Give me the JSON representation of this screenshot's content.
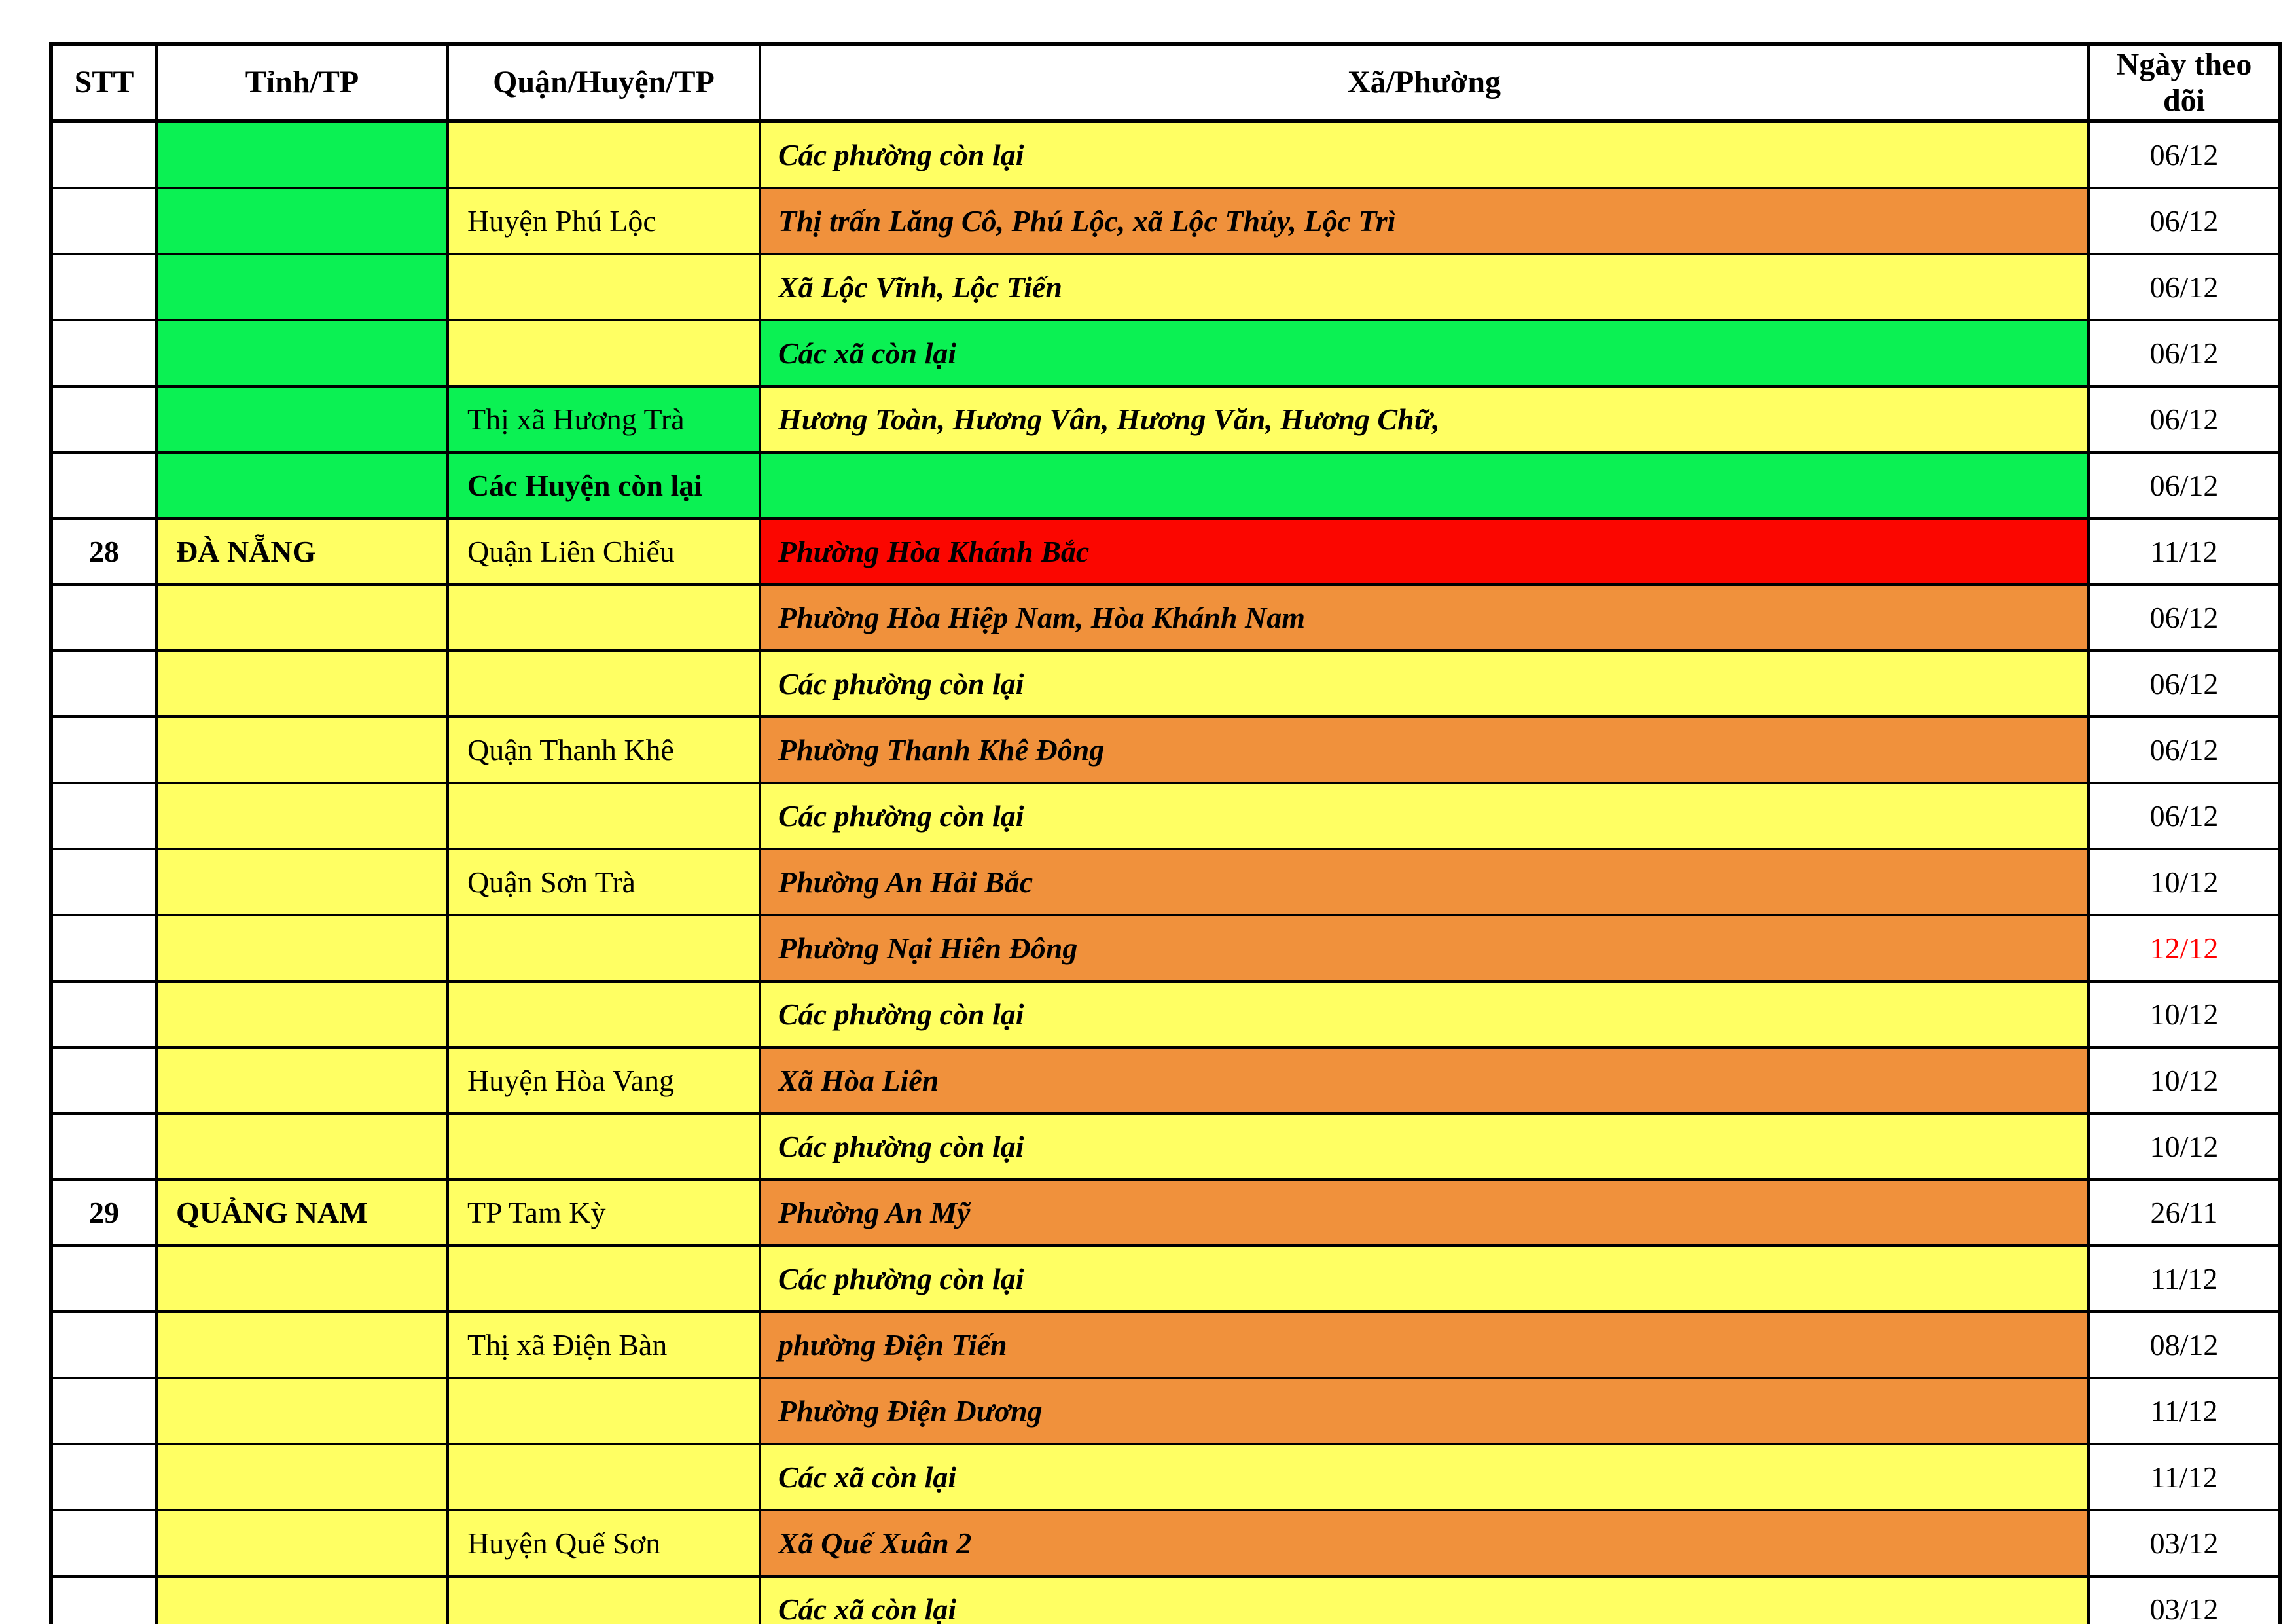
{
  "colors": {
    "green": "#0BF153",
    "yellow": "#FFFF63",
    "orange": "#F0913C",
    "red": "#FB0600",
    "white": "#FFFFFF",
    "date_red_text": "#FF0000"
  },
  "table": {
    "headers": [
      "STT",
      "Tỉnh/TP",
      "Quận/Huyện/TP",
      "Xã/Phường",
      "Ngày theo dõi"
    ],
    "rows": [
      {
        "stt": "",
        "province": "",
        "p_bg": "green",
        "district": "",
        "d_bg": "yellow",
        "d_bold": false,
        "ward": "Các phường còn lại",
        "w_bg": "yellow",
        "date": "06/12",
        "date_red": false
      },
      {
        "stt": "",
        "province": "",
        "p_bg": "green",
        "district": "Huyện Phú Lộc",
        "d_bg": "yellow",
        "d_bold": false,
        "ward": "Thị trấn Lăng Cô, Phú Lộc, xã Lộc Thủy, Lộc Trì",
        "w_bg": "orange",
        "date": "06/12",
        "date_red": false
      },
      {
        "stt": "",
        "province": "",
        "p_bg": "green",
        "district": "",
        "d_bg": "yellow",
        "d_bold": false,
        "ward": "Xã Lộc Vĩnh, Lộc Tiến",
        "w_bg": "yellow",
        "date": "06/12",
        "date_red": false
      },
      {
        "stt": "",
        "province": "",
        "p_bg": "green",
        "district": "",
        "d_bg": "yellow",
        "d_bold": false,
        "ward": "Các xã còn lại",
        "w_bg": "green",
        "date": "06/12",
        "date_red": false
      },
      {
        "stt": "",
        "province": "",
        "p_bg": "green",
        "district": "Thị xã Hương Trà",
        "d_bg": "green",
        "d_bold": false,
        "ward": "Hương Toàn, Hương Vân, Hương Văn, Hương Chữ,",
        "w_bg": "yellow",
        "date": "06/12",
        "date_red": false
      },
      {
        "stt": "",
        "province": "",
        "p_bg": "green",
        "district": "Các Huyện còn lại",
        "d_bg": "green",
        "d_bold": true,
        "ward": "",
        "w_bg": "green",
        "date": "06/12",
        "date_red": false
      },
      {
        "stt": "28",
        "province": "ĐÀ NẴNG",
        "p_bg": "yellow",
        "district": "Quận Liên Chiểu",
        "d_bg": "yellow",
        "d_bold": false,
        "ward": "Phường Hòa Khánh Bắc",
        "w_bg": "red",
        "date": "11/12",
        "date_red": false
      },
      {
        "stt": "",
        "province": "",
        "p_bg": "yellow",
        "district": "",
        "d_bg": "yellow",
        "d_bold": false,
        "ward": "Phường Hòa Hiệp Nam, Hòa Khánh Nam",
        "w_bg": "orange",
        "date": "06/12",
        "date_red": false
      },
      {
        "stt": "",
        "province": "",
        "p_bg": "yellow",
        "district": "",
        "d_bg": "yellow",
        "d_bold": false,
        "ward": "Các phường còn lại",
        "w_bg": "yellow",
        "date": "06/12",
        "date_red": false
      },
      {
        "stt": "",
        "province": "",
        "p_bg": "yellow",
        "district": "Quận Thanh Khê",
        "d_bg": "yellow",
        "d_bold": false,
        "ward": "Phường Thanh Khê Đông",
        "w_bg": "orange",
        "date": "06/12",
        "date_red": false
      },
      {
        "stt": "",
        "province": "",
        "p_bg": "yellow",
        "district": "",
        "d_bg": "yellow",
        "d_bold": false,
        "ward": "Các phường còn lại",
        "w_bg": "yellow",
        "date": "06/12",
        "date_red": false
      },
      {
        "stt": "",
        "province": "",
        "p_bg": "yellow",
        "district": "Quận Sơn Trà",
        "d_bg": "yellow",
        "d_bold": false,
        "ward": "Phường An Hải Bắc",
        "w_bg": "orange",
        "date": "10/12",
        "date_red": false
      },
      {
        "stt": "",
        "province": "",
        "p_bg": "yellow",
        "district": "",
        "d_bg": "yellow",
        "d_bold": false,
        "ward": "Phường Nại Hiên Đông",
        "w_bg": "orange",
        "date": "12/12",
        "date_red": true
      },
      {
        "stt": "",
        "province": "",
        "p_bg": "yellow",
        "district": "",
        "d_bg": "yellow",
        "d_bold": false,
        "ward": "Các phường còn lại",
        "w_bg": "yellow",
        "date": "10/12",
        "date_red": false
      },
      {
        "stt": "",
        "province": "",
        "p_bg": "yellow",
        "district": "Huyện Hòa Vang",
        "d_bg": "yellow",
        "d_bold": false,
        "ward": "Xã Hòa Liên",
        "w_bg": "orange",
        "date": "10/12",
        "date_red": false
      },
      {
        "stt": "",
        "province": "",
        "p_bg": "yellow",
        "district": "",
        "d_bg": "yellow",
        "d_bold": false,
        "ward": "Các phường còn lại",
        "w_bg": "yellow",
        "date": "10/12",
        "date_red": false
      },
      {
        "stt": "29",
        "province": "QUẢNG NAM",
        "p_bg": "yellow",
        "district": "TP Tam Kỳ",
        "d_bg": "yellow",
        "d_bold": false,
        "ward": "Phường An Mỹ",
        "w_bg": "orange",
        "date": "26/11",
        "date_red": false
      },
      {
        "stt": "",
        "province": "",
        "p_bg": "yellow",
        "district": "",
        "d_bg": "yellow",
        "d_bold": false,
        "ward": "Các phường còn lại",
        "w_bg": "yellow",
        "date": "11/12",
        "date_red": false
      },
      {
        "stt": "",
        "province": "",
        "p_bg": "yellow",
        "district": "Thị xã Điện Bàn",
        "d_bg": "yellow",
        "d_bold": false,
        "ward": "phường Điện Tiến",
        "w_bg": "orange",
        "date": "08/12",
        "date_red": false
      },
      {
        "stt": "",
        "province": "",
        "p_bg": "yellow",
        "district": "",
        "d_bg": "yellow",
        "d_bold": false,
        "ward": "Phường Điện Dương",
        "w_bg": "orange",
        "date": "11/12",
        "date_red": false
      },
      {
        "stt": "",
        "province": "",
        "p_bg": "yellow",
        "district": "",
        "d_bg": "yellow",
        "d_bold": false,
        "ward": "Các xã còn lại",
        "w_bg": "yellow",
        "date": "11/12",
        "date_red": false
      },
      {
        "stt": "",
        "province": "",
        "p_bg": "yellow",
        "district": "Huyện Quế Sơn",
        "d_bg": "yellow",
        "d_bold": false,
        "ward": "Xã Quế Xuân 2",
        "w_bg": "orange",
        "date": "03/12",
        "date_red": false
      },
      {
        "stt": "",
        "province": "",
        "p_bg": "yellow",
        "district": "",
        "d_bg": "yellow",
        "d_bold": false,
        "ward": "Các xã còn lại",
        "w_bg": "yellow",
        "date": "03/12",
        "date_red": false
      }
    ]
  }
}
